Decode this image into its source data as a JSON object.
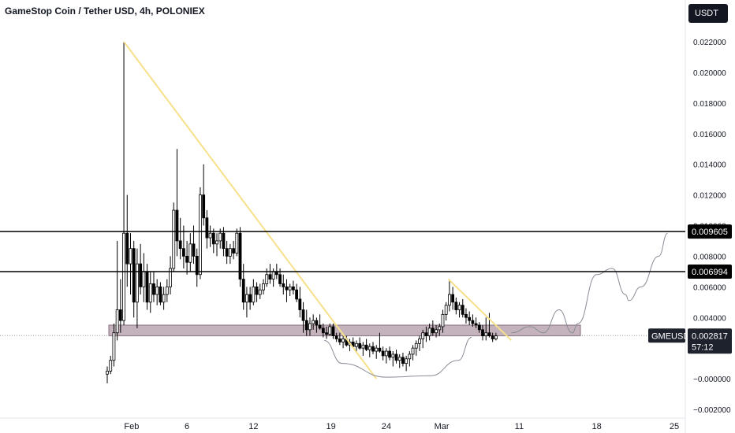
{
  "header": {
    "title": "GameStop Coin / Tether USD, 4h, POLONIEX",
    "currency_label": "USDT"
  },
  "chart_data": {
    "type": "candlestick",
    "title": "GameStop Coin / Tether USD, 4h, POLONIEX",
    "symbol": "GMEUSDT",
    "y_ticks": [
      "0.022000",
      "0.020000",
      "0.018000",
      "0.016000",
      "0.014000",
      "0.012000",
      "0.010000",
      "0.008000",
      "0.006000",
      "0.004000",
      "−0.000000",
      "−0.002000"
    ],
    "y_tick_values": [
      0.022,
      0.02,
      0.018,
      0.016,
      0.014,
      0.012,
      0.01,
      0.008,
      0.006,
      0.004,
      0.0,
      -0.002
    ],
    "ylim": [
      -0.002,
      0.0235
    ],
    "x_ticks": [
      "Feb",
      "6",
      "12",
      "19",
      "24",
      "Mar",
      "11",
      "18",
      "25"
    ],
    "x_tick_days": [
      1,
      6,
      12,
      19,
      24,
      29,
      36,
      43,
      50
    ],
    "xlim": [
      -1.2,
      51
    ],
    "horizontal_levels": [
      {
        "value": 0.009605,
        "label": "0.009605"
      },
      {
        "value": 0.006994,
        "label": "0.006994"
      }
    ],
    "current_price": {
      "symbol": "GMEUSDT",
      "label": "0.002817",
      "value": 0.002817,
      "countdown": "57:12"
    },
    "support_zone": [
      0.0028,
      0.0035
    ],
    "trendlines": [
      {
        "from": [
          0.3,
          0.022
        ],
        "to": [
          23.1,
          0.0
        ]
      },
      {
        "from": [
          29.6,
          0.0065
        ],
        "to": [
          35.3,
          0.0025
        ]
      }
    ],
    "curves": [
      {
        "name": "rounded-bottom",
        "points": [
          [
            18.4,
            0.0025
          ],
          [
            20,
            0.001
          ],
          [
            24,
            0.0001
          ],
          [
            28,
            0.0002
          ],
          [
            30.5,
            0.0012
          ],
          [
            31.7,
            0.0027
          ]
        ]
      },
      {
        "name": "projection",
        "points": [
          [
            35.3,
            0.003
          ],
          [
            37,
            0.0034
          ],
          [
            38.2,
            0.003
          ],
          [
            39.6,
            0.0045
          ],
          [
            40.8,
            0.003
          ],
          [
            41.3,
            0.0036
          ],
          [
            43,
            0.0068
          ],
          [
            44.4,
            0.0072
          ],
          [
            45.6,
            0.0055
          ],
          [
            45.9,
            0.0051
          ],
          [
            47,
            0.006
          ],
          [
            48.6,
            0.008
          ],
          [
            49.4,
            0.0095
          ]
        ]
      }
    ],
    "candles": [
      [
        -1.2,
        0.0003,
        0.0008,
        -0.0003,
        0.0005
      ],
      [
        -0.9,
        0.0005,
        0.0015,
        0.0003,
        0.0012
      ],
      [
        -0.6,
        0.0012,
        0.0036,
        0.0008,
        0.003
      ],
      [
        -0.3,
        0.003,
        0.009,
        0.0025,
        0.0045
      ],
      [
        0.0,
        0.0045,
        0.0065,
        0.003,
        0.0038
      ],
      [
        0.3,
        0.0038,
        0.022,
        0.0035,
        0.0095
      ],
      [
        0.6,
        0.0095,
        0.012,
        0.006,
        0.0075
      ],
      [
        0.9,
        0.0075,
        0.0095,
        0.0055,
        0.0085
      ],
      [
        1.2,
        0.0085,
        0.009,
        0.004,
        0.005
      ],
      [
        1.5,
        0.005,
        0.0085,
        0.0033,
        0.0075
      ],
      [
        1.8,
        0.0075,
        0.0088,
        0.0055,
        0.006
      ],
      [
        2.1,
        0.006,
        0.0082,
        0.005,
        0.007
      ],
      [
        2.4,
        0.007,
        0.0075,
        0.0045,
        0.005
      ],
      [
        2.7,
        0.005,
        0.007,
        0.0043,
        0.0062
      ],
      [
        3.0,
        0.0062,
        0.007,
        0.005,
        0.0055
      ],
      [
        3.3,
        0.0055,
        0.0065,
        0.0048,
        0.006
      ],
      [
        3.6,
        0.006,
        0.0063,
        0.0048,
        0.005
      ],
      [
        3.9,
        0.005,
        0.006,
        0.0045,
        0.0055
      ],
      [
        4.2,
        0.0055,
        0.0065,
        0.005,
        0.006
      ],
      [
        4.5,
        0.006,
        0.008,
        0.0055,
        0.0072
      ],
      [
        4.8,
        0.0072,
        0.0115,
        0.007,
        0.011
      ],
      [
        5.1,
        0.011,
        0.015,
        0.008,
        0.009
      ],
      [
        5.4,
        0.009,
        0.0105,
        0.0078,
        0.0085
      ],
      [
        5.7,
        0.0085,
        0.01,
        0.0072,
        0.008
      ],
      [
        6.0,
        0.008,
        0.009,
        0.0068,
        0.0076
      ],
      [
        6.3,
        0.0076,
        0.0095,
        0.007,
        0.0088
      ],
      [
        6.6,
        0.0088,
        0.01,
        0.0075,
        0.008
      ],
      [
        6.9,
        0.008,
        0.0085,
        0.006,
        0.0068
      ],
      [
        7.2,
        0.0068,
        0.0125,
        0.0065,
        0.012
      ],
      [
        7.5,
        0.012,
        0.014,
        0.01,
        0.0105
      ],
      [
        7.8,
        0.0105,
        0.011,
        0.0085,
        0.0092
      ],
      [
        8.1,
        0.0092,
        0.01,
        0.0086,
        0.0095
      ],
      [
        8.4,
        0.0095,
        0.0098,
        0.0082,
        0.0088
      ],
      [
        8.7,
        0.0088,
        0.0095,
        0.008,
        0.009
      ],
      [
        9.0,
        0.009,
        0.0098,
        0.0085,
        0.0095
      ],
      [
        9.3,
        0.0095,
        0.0099,
        0.008,
        0.0085
      ],
      [
        9.6,
        0.0085,
        0.009,
        0.0075,
        0.008
      ],
      [
        9.9,
        0.008,
        0.0088,
        0.0075,
        0.0085
      ],
      [
        10.2,
        0.0085,
        0.009,
        0.0078,
        0.0082
      ],
      [
        10.5,
        0.0082,
        0.0098,
        0.008,
        0.0095
      ],
      [
        10.8,
        0.0095,
        0.0099,
        0.006,
        0.0065
      ],
      [
        11.1,
        0.0065,
        0.0075,
        0.0045,
        0.005
      ],
      [
        11.4,
        0.005,
        0.006,
        0.004,
        0.0055
      ],
      [
        11.7,
        0.0055,
        0.006,
        0.0045,
        0.005
      ],
      [
        12.0,
        0.005,
        0.0065,
        0.0048,
        0.006
      ],
      [
        12.3,
        0.006,
        0.0063,
        0.005,
        0.0055
      ],
      [
        12.6,
        0.0055,
        0.0062,
        0.0052,
        0.0058
      ],
      [
        12.9,
        0.0058,
        0.0065,
        0.0055,
        0.0062
      ],
      [
        13.2,
        0.0062,
        0.0072,
        0.006,
        0.0068
      ],
      [
        13.5,
        0.0068,
        0.0075,
        0.0062,
        0.0065
      ],
      [
        13.8,
        0.0065,
        0.0072,
        0.006,
        0.007
      ],
      [
        14.1,
        0.007,
        0.0075,
        0.0065,
        0.0068
      ],
      [
        14.4,
        0.0068,
        0.0072,
        0.006,
        0.0062
      ],
      [
        14.7,
        0.0062,
        0.0068,
        0.0055,
        0.006
      ],
      [
        15.0,
        0.006,
        0.0065,
        0.005,
        0.0058
      ],
      [
        15.3,
        0.0058,
        0.0062,
        0.0054,
        0.006
      ],
      [
        15.6,
        0.006,
        0.0064,
        0.0055,
        0.0058
      ],
      [
        15.9,
        0.0058,
        0.0062,
        0.005,
        0.0052
      ],
      [
        16.2,
        0.0052,
        0.006,
        0.004,
        0.0045
      ],
      [
        16.5,
        0.0045,
        0.005,
        0.003,
        0.0038
      ],
      [
        16.8,
        0.0038,
        0.0045,
        0.0028,
        0.0032
      ],
      [
        17.1,
        0.0032,
        0.004,
        0.0028,
        0.0036
      ],
      [
        17.4,
        0.0036,
        0.0042,
        0.0032,
        0.0038
      ],
      [
        17.7,
        0.0038,
        0.004,
        0.003,
        0.0035
      ],
      [
        18.0,
        0.0035,
        0.0042,
        0.0032,
        0.0033
      ],
      [
        18.3,
        0.0033,
        0.0036,
        0.0027,
        0.003
      ],
      [
        18.6,
        0.003,
        0.0034,
        0.0026,
        0.0029
      ],
      [
        18.9,
        0.0029,
        0.0036,
        0.0028,
        0.0034
      ],
      [
        19.2,
        0.0034,
        0.0036,
        0.0026,
        0.0028
      ],
      [
        19.5,
        0.0028,
        0.003,
        0.0024,
        0.0026
      ],
      [
        19.8,
        0.0026,
        0.003,
        0.0022,
        0.0024
      ],
      [
        20.1,
        0.0024,
        0.0028,
        0.002,
        0.0026
      ],
      [
        20.4,
        0.0026,
        0.0028,
        0.0021,
        0.0022
      ],
      [
        20.7,
        0.0022,
        0.0026,
        0.0018,
        0.0024
      ],
      [
        21.0,
        0.0024,
        0.0027,
        0.002,
        0.0021
      ],
      [
        21.3,
        0.0021,
        0.0025,
        0.0017,
        0.0023
      ],
      [
        21.6,
        0.0023,
        0.0027,
        0.0019,
        0.002
      ],
      [
        21.9,
        0.002,
        0.0024,
        0.0015,
        0.0022
      ],
      [
        22.2,
        0.0022,
        0.0026,
        0.0018,
        0.0019
      ],
      [
        22.5,
        0.0019,
        0.0023,
        0.0014,
        0.0021
      ],
      [
        22.8,
        0.0021,
        0.0024,
        0.0016,
        0.0018
      ],
      [
        23.1,
        0.0018,
        0.0022,
        0.0013,
        0.002
      ],
      [
        23.4,
        0.002,
        0.003,
        0.0017,
        0.0018
      ],
      [
        23.7,
        0.0018,
        0.0021,
        0.0012,
        0.0015
      ],
      [
        24.0,
        0.0015,
        0.002,
        0.001,
        0.0018
      ],
      [
        24.3,
        0.0018,
        0.0021,
        0.0012,
        0.0014
      ],
      [
        24.6,
        0.0014,
        0.0018,
        0.0008,
        0.0016
      ],
      [
        24.9,
        0.0016,
        0.0019,
        0.001,
        0.0012
      ],
      [
        25.2,
        0.0012,
        0.0016,
        0.0007,
        0.0014
      ],
      [
        25.5,
        0.0014,
        0.0017,
        0.0008,
        0.001
      ],
      [
        25.8,
        0.001,
        0.0015,
        0.0005,
        0.0013
      ],
      [
        26.1,
        0.0013,
        0.0018,
        0.0008,
        0.0016
      ],
      [
        26.4,
        0.0016,
        0.0022,
        0.0012,
        0.002
      ],
      [
        26.7,
        0.002,
        0.0025,
        0.0015,
        0.0023
      ],
      [
        27.0,
        0.0023,
        0.0028,
        0.0018,
        0.0026
      ],
      [
        27.3,
        0.0026,
        0.0032,
        0.002,
        0.003
      ],
      [
        27.6,
        0.003,
        0.0034,
        0.0024,
        0.0028
      ],
      [
        27.9,
        0.0028,
        0.0036,
        0.0025,
        0.0033
      ],
      [
        28.2,
        0.0033,
        0.0038,
        0.0028,
        0.003
      ],
      [
        28.5,
        0.003,
        0.0035,
        0.0027,
        0.0032
      ],
      [
        28.8,
        0.0032,
        0.0036,
        0.0028,
        0.0034
      ],
      [
        29.1,
        0.0034,
        0.0045,
        0.003,
        0.0042
      ],
      [
        29.4,
        0.0042,
        0.005,
        0.0038,
        0.0048
      ],
      [
        29.7,
        0.0048,
        0.0065,
        0.0044,
        0.0055
      ],
      [
        30.0,
        0.0055,
        0.006,
        0.0045,
        0.005
      ],
      [
        30.3,
        0.005,
        0.0053,
        0.0042,
        0.0045
      ],
      [
        30.6,
        0.0045,
        0.005,
        0.004,
        0.0048
      ],
      [
        30.9,
        0.0048,
        0.0052,
        0.004,
        0.0042
      ],
      [
        31.2,
        0.0042,
        0.0046,
        0.0036,
        0.004
      ],
      [
        31.5,
        0.004,
        0.0044,
        0.0035,
        0.0038
      ],
      [
        31.8,
        0.0038,
        0.0042,
        0.0034,
        0.0036
      ],
      [
        32.1,
        0.0036,
        0.004,
        0.0033,
        0.0035
      ],
      [
        32.4,
        0.0035,
        0.0037,
        0.003,
        0.0032
      ],
      [
        32.7,
        0.0032,
        0.0035,
        0.0025,
        0.0028
      ],
      [
        33.0,
        0.0028,
        0.004,
        0.0025,
        0.003
      ],
      [
        33.3,
        0.003,
        0.0043,
        0.0027,
        0.0028
      ],
      [
        33.6,
        0.0028,
        0.003,
        0.0024,
        0.0026
      ],
      [
        33.9,
        0.0026,
        0.003,
        0.0025,
        0.0028
      ]
    ]
  }
}
